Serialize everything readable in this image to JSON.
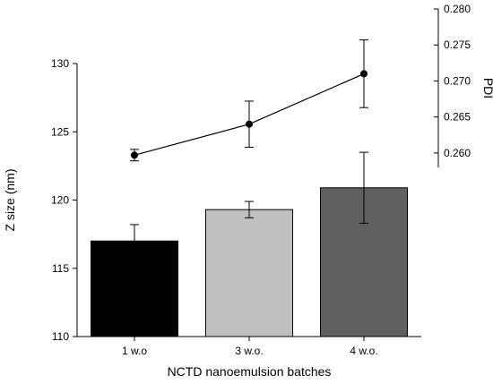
{
  "chart_data": {
    "type": "bar",
    "categories": [
      "1 w.o",
      "3 w.o.",
      "4 w.o."
    ],
    "xlabel": "NCTD nanoemulsion batches",
    "ylabel": "Z size (nm)",
    "y2label": "PDI",
    "ylim": [
      110,
      130
    ],
    "yticks": [
      "110",
      "115",
      "120",
      "125",
      "130"
    ],
    "y2lim": [
      0.258,
      0.28
    ],
    "y2ticks": [
      "0.260",
      "0.265",
      "0.270",
      "0.275",
      "0.280"
    ],
    "grid": false,
    "series": [
      {
        "type": "bar",
        "axis": "left",
        "values": [
          117.0,
          119.3,
          120.9
        ],
        "errors": [
          1.2,
          0.6,
          2.6
        ],
        "colors": [
          "#000000",
          "#c0c0c0",
          "#606060"
        ]
      },
      {
        "type": "line",
        "axis": "right",
        "values": [
          0.2597,
          0.264,
          0.271
        ],
        "errors": [
          0.0008,
          0.0032,
          0.0047
        ],
        "color": "#000000"
      }
    ]
  }
}
